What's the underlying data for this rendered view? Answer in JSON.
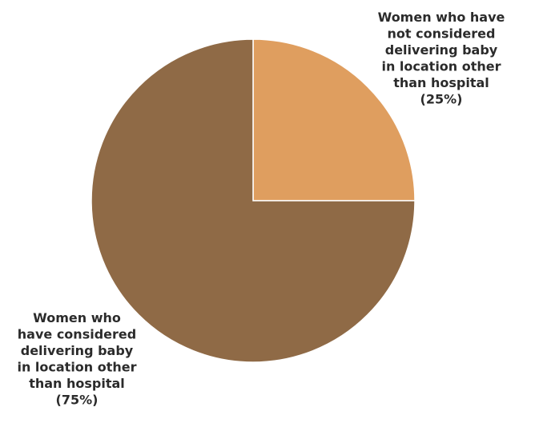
{
  "chart_data": {
    "type": "pie",
    "start_angle_deg": 0,
    "direction": "clockwise",
    "slices": [
      {
        "label_lines": [
          "Women who have",
          "not considered",
          "delivering baby",
          "in location other",
          "than hospital",
          "(25%)"
        ],
        "value": 25,
        "color": "#DF9E5F"
      },
      {
        "label_lines": [
          "Women who",
          "have considered",
          "delivering baby",
          "in location other",
          "than hospital",
          "(75%)"
        ],
        "value": 75,
        "color": "#8F6A46"
      }
    ],
    "legend": "none",
    "slice_border_color": "#ffffff"
  }
}
